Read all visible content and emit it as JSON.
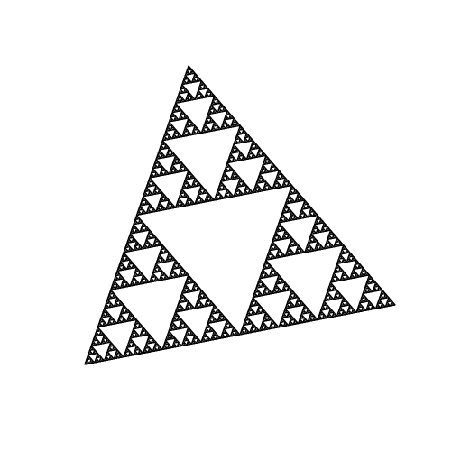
{
  "figure": {
    "kind": "sierpinski-triangle-fractal",
    "recursion_depth": 7,
    "stroke_color": "#000000",
    "background_color": "#ffffff",
    "fill": "none"
  }
}
